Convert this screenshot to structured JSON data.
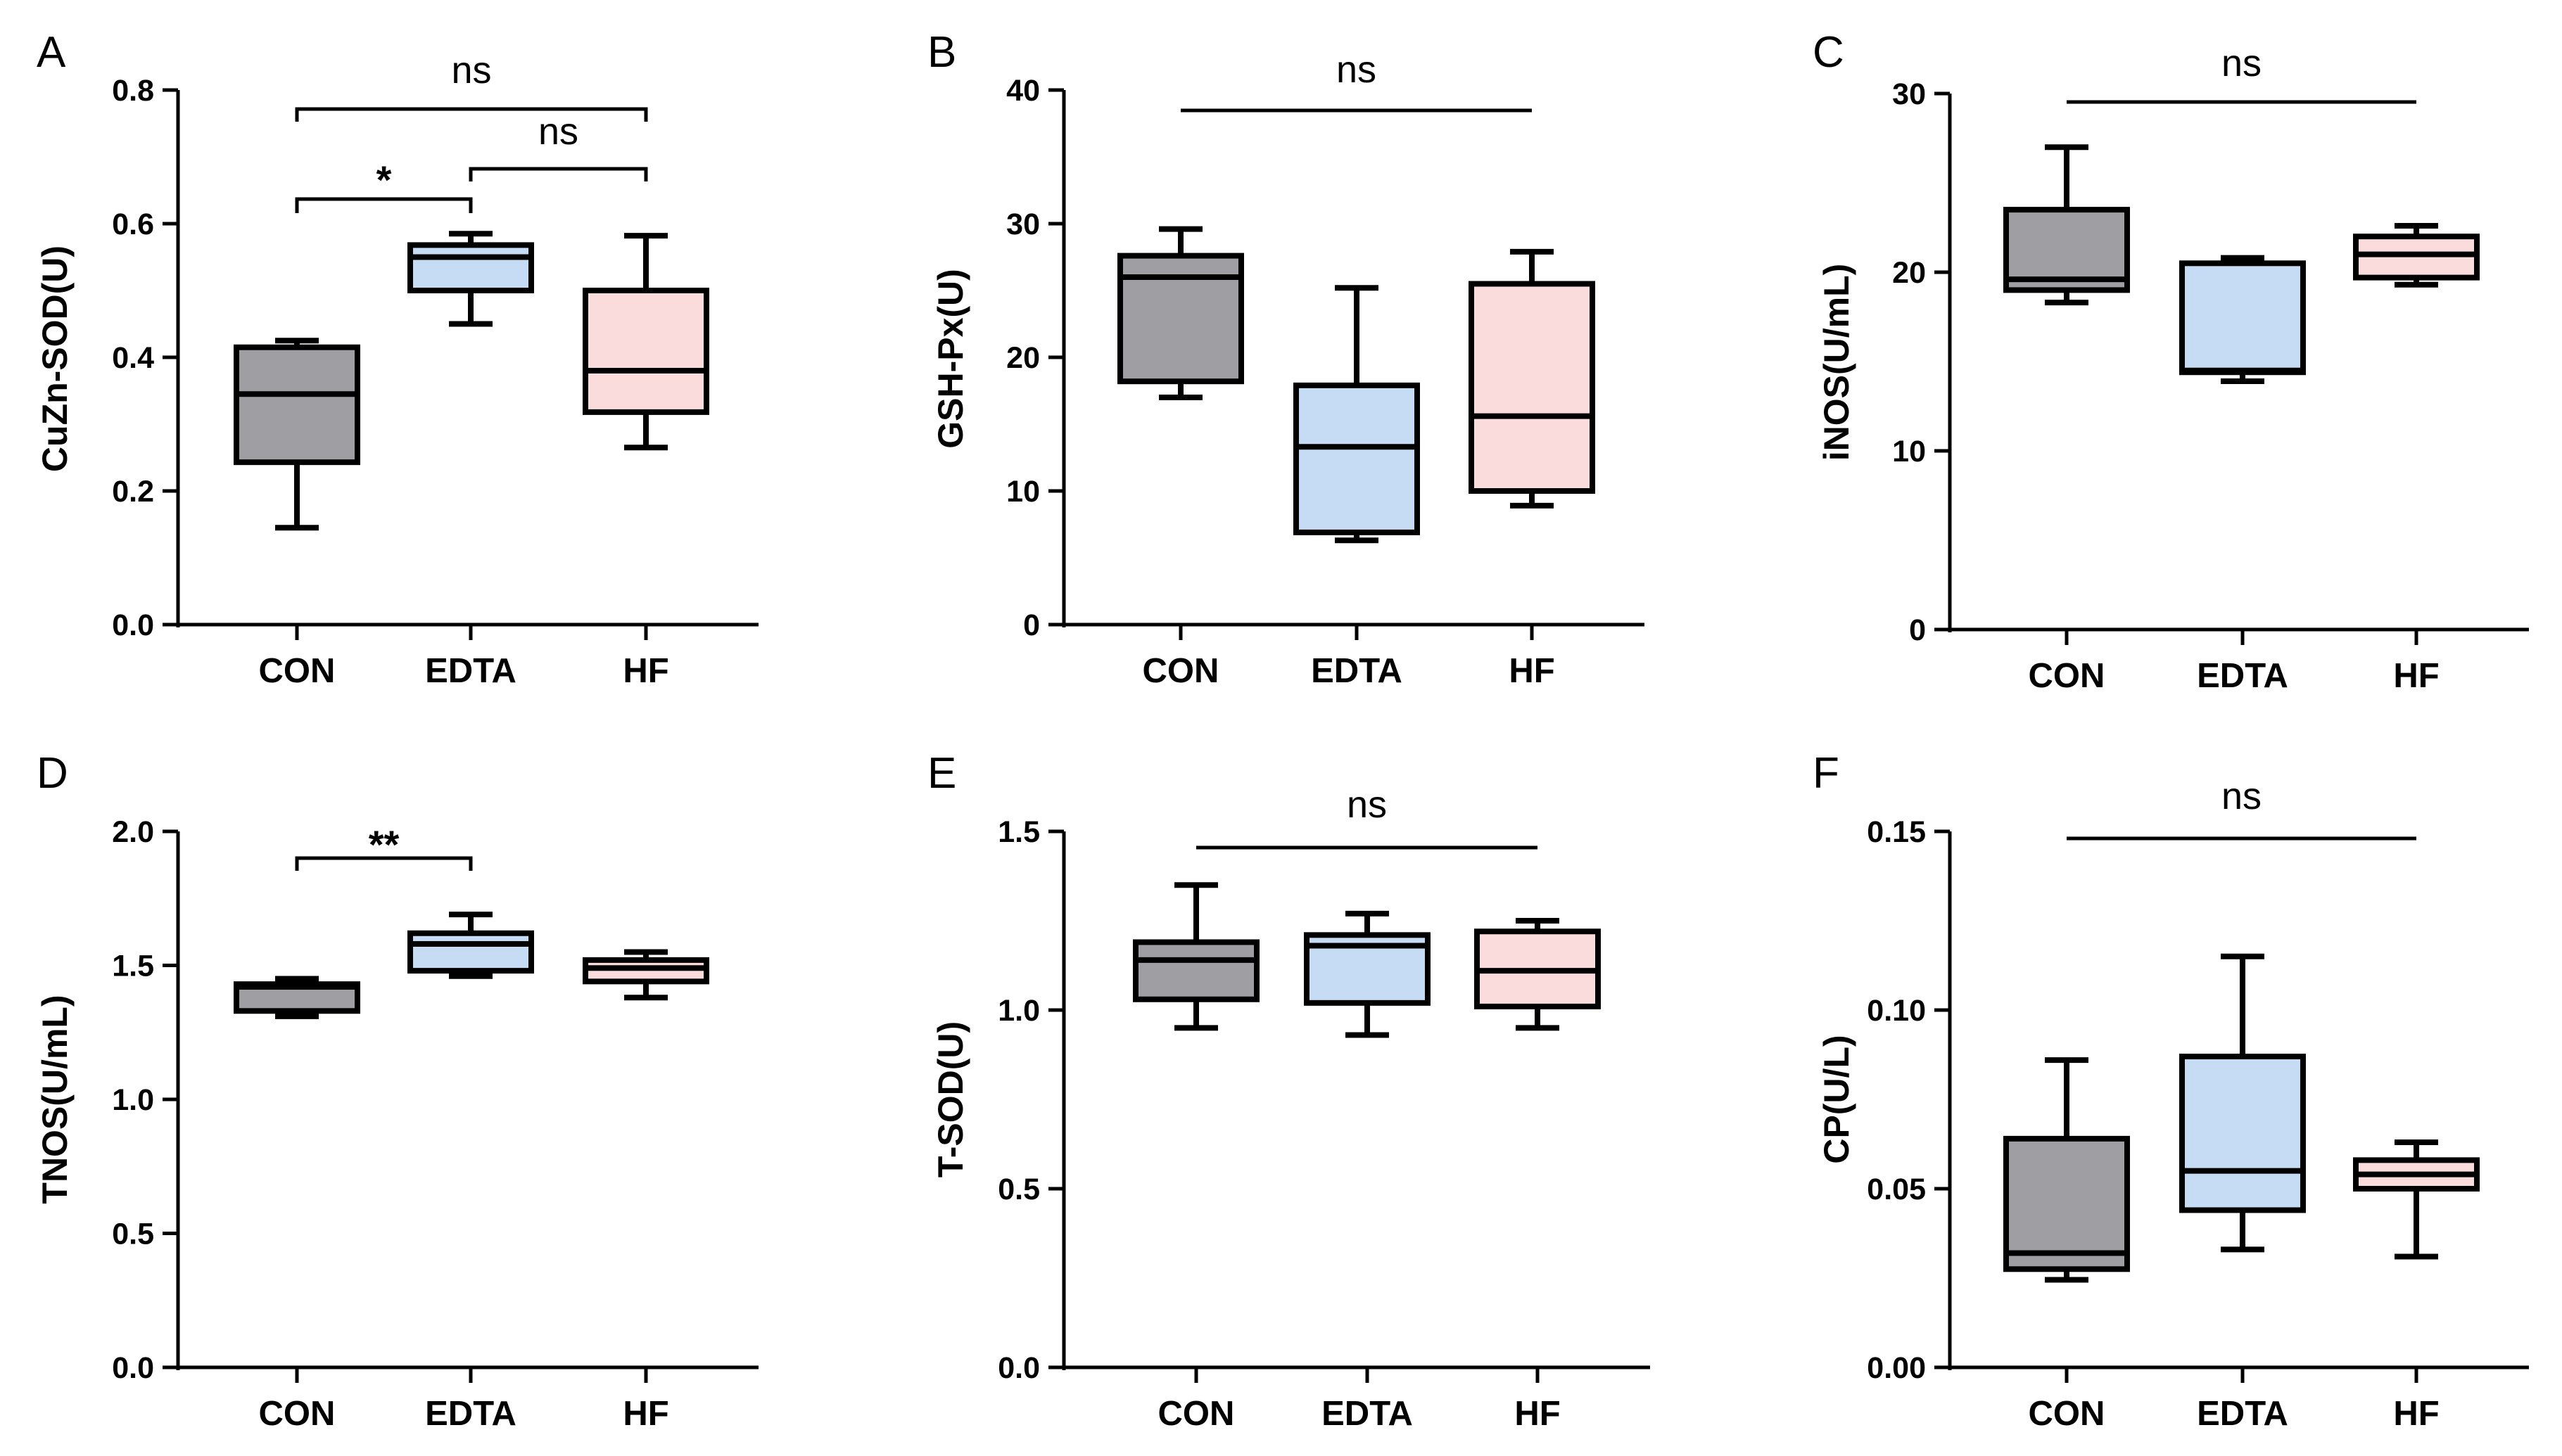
{
  "figure": {
    "title": ""
  },
  "chart_data": [
    {
      "panel": "A",
      "type": "box",
      "categories": [
        "CON",
        "EDTA",
        "HF"
      ],
      "ylabel": "CuZn-SOD(U)",
      "ylim": [
        0,
        0.8
      ],
      "yticks": [
        "0.0",
        "0.2",
        "0.4",
        "0.6",
        "0.8"
      ],
      "boxes": [
        {
          "group": "CON",
          "min": 0.145,
          "q1": 0.243,
          "median": 0.345,
          "q3": 0.415,
          "max": 0.425,
          "fill": "#9e9ea3"
        },
        {
          "group": "EDTA",
          "min": 0.45,
          "q1": 0.5,
          "median": 0.55,
          "q3": 0.568,
          "max": 0.585,
          "fill": "#c6dcf5"
        },
        {
          "group": "HF",
          "min": 0.265,
          "q1": 0.318,
          "median": 0.38,
          "q3": 0.5,
          "max": 0.582,
          "fill": "#fadcdd"
        }
      ],
      "comparisons": [
        {
          "from": "CON",
          "to": "HF",
          "label": "ns"
        },
        {
          "from": "EDTA",
          "to": "HF",
          "label": "ns"
        },
        {
          "from": "CON",
          "to": "EDTA",
          "label": "*"
        }
      ]
    },
    {
      "panel": "B",
      "type": "box",
      "categories": [
        "CON",
        "EDTA",
        "HF"
      ],
      "ylabel": "GSH-Px(U)",
      "ylim": [
        0,
        40
      ],
      "yticks": [
        "0",
        "10",
        "20",
        "30",
        "40"
      ],
      "boxes": [
        {
          "group": "CON",
          "min": 17.0,
          "q1": 18.2,
          "median": 26.0,
          "q3": 27.6,
          "max": 29.6,
          "fill": "#9e9ea3"
        },
        {
          "group": "EDTA",
          "min": 6.3,
          "q1": 6.9,
          "median": 13.3,
          "q3": 17.9,
          "max": 25.2,
          "fill": "#c6dcf5"
        },
        {
          "group": "HF",
          "min": 8.9,
          "q1": 10.0,
          "median": 15.6,
          "q3": 25.5,
          "max": 27.9,
          "fill": "#fadcdd"
        }
      ],
      "comparisons": [
        {
          "from": "CON",
          "to": "HF",
          "label": "ns"
        }
      ]
    },
    {
      "panel": "C",
      "type": "box",
      "categories": [
        "CON",
        "EDTA",
        "HF"
      ],
      "ylabel": "iNOS(U/mL)",
      "ylim": [
        0,
        30
      ],
      "yticks": [
        "0",
        "10",
        "20",
        "30"
      ],
      "boxes": [
        {
          "group": "CON",
          "min": 18.3,
          "q1": 19.0,
          "median": 19.6,
          "q3": 23.5,
          "max": 27.0,
          "fill": "#9e9ea3"
        },
        {
          "group": "EDTA",
          "min": 13.9,
          "q1": 14.4,
          "median": 14.5,
          "q3": 20.5,
          "max": 20.8,
          "fill": "#c6dcf5"
        },
        {
          "group": "HF",
          "min": 19.3,
          "q1": 19.7,
          "median": 21.0,
          "q3": 22.0,
          "max": 22.6,
          "fill": "#fadcdd"
        }
      ],
      "comparisons": [
        {
          "from": "CON",
          "to": "HF",
          "label": "ns"
        }
      ]
    },
    {
      "panel": "D",
      "type": "box",
      "categories": [
        "CON",
        "EDTA",
        "HF"
      ],
      "ylabel": "TNOS(U/mL)",
      "ylim": [
        0,
        2.0
      ],
      "yticks": [
        "0.0",
        "0.5",
        "1.0",
        "1.5",
        "2.0"
      ],
      "boxes": [
        {
          "group": "CON",
          "min": 1.31,
          "q1": 1.33,
          "median": 1.42,
          "q3": 1.43,
          "max": 1.45,
          "fill": "#9e9ea3"
        },
        {
          "group": "EDTA",
          "min": 1.46,
          "q1": 1.48,
          "median": 1.58,
          "q3": 1.62,
          "max": 1.69,
          "fill": "#c6dcf5"
        },
        {
          "group": "HF",
          "min": 1.38,
          "q1": 1.44,
          "median": 1.49,
          "q3": 1.52,
          "max": 1.55,
          "fill": "#fadcdd"
        }
      ],
      "comparisons": [
        {
          "from": "CON",
          "to": "EDTA",
          "label": "**"
        }
      ]
    },
    {
      "panel": "E",
      "type": "box",
      "categories": [
        "CON",
        "EDTA",
        "HF"
      ],
      "ylabel": "T-SOD(U)",
      "ylim": [
        0,
        1.5
      ],
      "yticks": [
        "0.0",
        "0.5",
        "1.0",
        "1.5"
      ],
      "boxes": [
        {
          "group": "CON",
          "min": 0.95,
          "q1": 1.03,
          "median": 1.14,
          "q3": 1.19,
          "max": 1.35,
          "fill": "#9e9ea3"
        },
        {
          "group": "EDTA",
          "min": 0.93,
          "q1": 1.02,
          "median": 1.18,
          "q3": 1.21,
          "max": 1.27,
          "fill": "#c6dcf5"
        },
        {
          "group": "HF",
          "min": 0.95,
          "q1": 1.01,
          "median": 1.11,
          "q3": 1.22,
          "max": 1.25,
          "fill": "#fadcdd"
        }
      ],
      "comparisons": [
        {
          "from": "CON",
          "to": "HF",
          "label": "ns"
        }
      ]
    },
    {
      "panel": "F",
      "type": "box",
      "categories": [
        "CON",
        "EDTA",
        "HF"
      ],
      "ylabel": "CP(U/L)",
      "ylim": [
        0,
        0.15
      ],
      "yticks": [
        "0.00",
        "0.05",
        "0.10",
        "0.15"
      ],
      "boxes": [
        {
          "group": "CON",
          "min": 0.0245,
          "q1": 0.0275,
          "median": 0.032,
          "q3": 0.064,
          "max": 0.086,
          "fill": "#9e9ea3"
        },
        {
          "group": "EDTA",
          "min": 0.033,
          "q1": 0.044,
          "median": 0.055,
          "q3": 0.087,
          "max": 0.115,
          "fill": "#c6dcf5"
        },
        {
          "group": "HF",
          "min": 0.031,
          "q1": 0.05,
          "median": 0.054,
          "q3": 0.058,
          "max": 0.063,
          "fill": "#fadcdd"
        }
      ],
      "comparisons": [
        {
          "from": "CON",
          "to": "HF",
          "label": "ns"
        }
      ]
    }
  ]
}
